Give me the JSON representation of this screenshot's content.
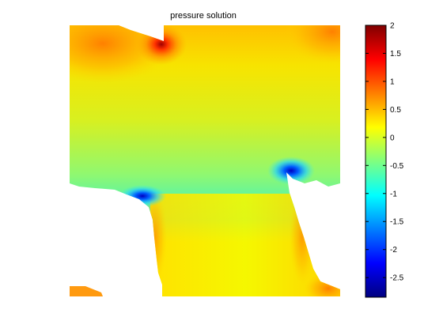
{
  "chart_data": {
    "type": "heatmap",
    "title": "pressure solution",
    "xlabel": "",
    "ylabel": "",
    "colormap": "jet",
    "colorbar": {
      "placement": "right",
      "range": [
        -2.85,
        2.0
      ],
      "ticks": [
        2,
        1.5,
        1,
        0.5,
        0,
        -0.5,
        -1,
        -1.5,
        -2,
        -2.5
      ],
      "tick_labels": [
        "2",
        "1.5",
        "1",
        "0.5",
        "0",
        "-0.5",
        "-1",
        "-1.5",
        "-2",
        "-2.5"
      ]
    },
    "grid": false,
    "features": [
      {
        "kind": "maximum",
        "value": 2.0
      },
      {
        "kind": "minimum",
        "value": -2.85
      }
    ]
  }
}
